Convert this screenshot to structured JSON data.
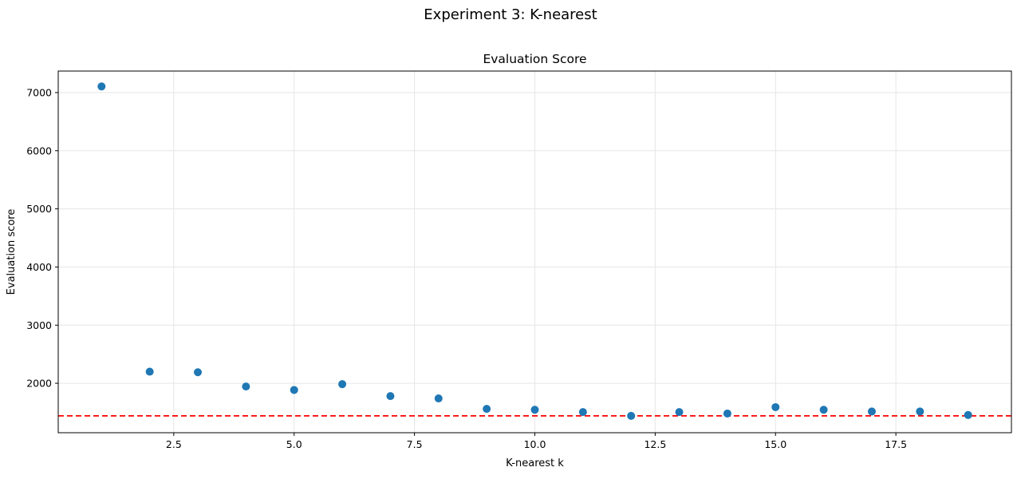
{
  "chart_data": {
    "type": "scatter",
    "suptitle": "Experiment 3: K-nearest",
    "title": "Evaluation Score",
    "xlabel": "K-nearest k",
    "ylabel": "Evaluation score",
    "x": [
      1,
      2,
      3,
      4,
      5,
      6,
      7,
      8,
      9,
      10,
      11,
      12,
      13,
      14,
      15,
      16,
      17,
      18,
      19
    ],
    "y": [
      7105,
      2200,
      2190,
      1945,
      1885,
      1985,
      1780,
      1740,
      1560,
      1545,
      1505,
      1440,
      1505,
      1480,
      1590,
      1545,
      1515,
      1515,
      1455
    ],
    "xlim": [
      0.1,
      19.9
    ],
    "ylim": [
      1150,
      7370
    ],
    "xticks": [
      2.5,
      5.0,
      7.5,
      10.0,
      12.5,
      15.0,
      17.5
    ],
    "xtick_labels": [
      "2.5",
      "5.0",
      "7.5",
      "10.0",
      "12.5",
      "15.0",
      "17.5"
    ],
    "yticks": [
      2000,
      3000,
      4000,
      5000,
      6000,
      7000
    ],
    "ytick_labels": [
      "2000",
      "3000",
      "4000",
      "5000",
      "6000",
      "7000"
    ],
    "reference_line": {
      "y": 1440,
      "style": "dashed",
      "color": "#ff0000"
    },
    "grid": true,
    "colors": {
      "points": "#1f77b4",
      "reference": "#ff0000",
      "grid": "#e6e6e6"
    }
  }
}
